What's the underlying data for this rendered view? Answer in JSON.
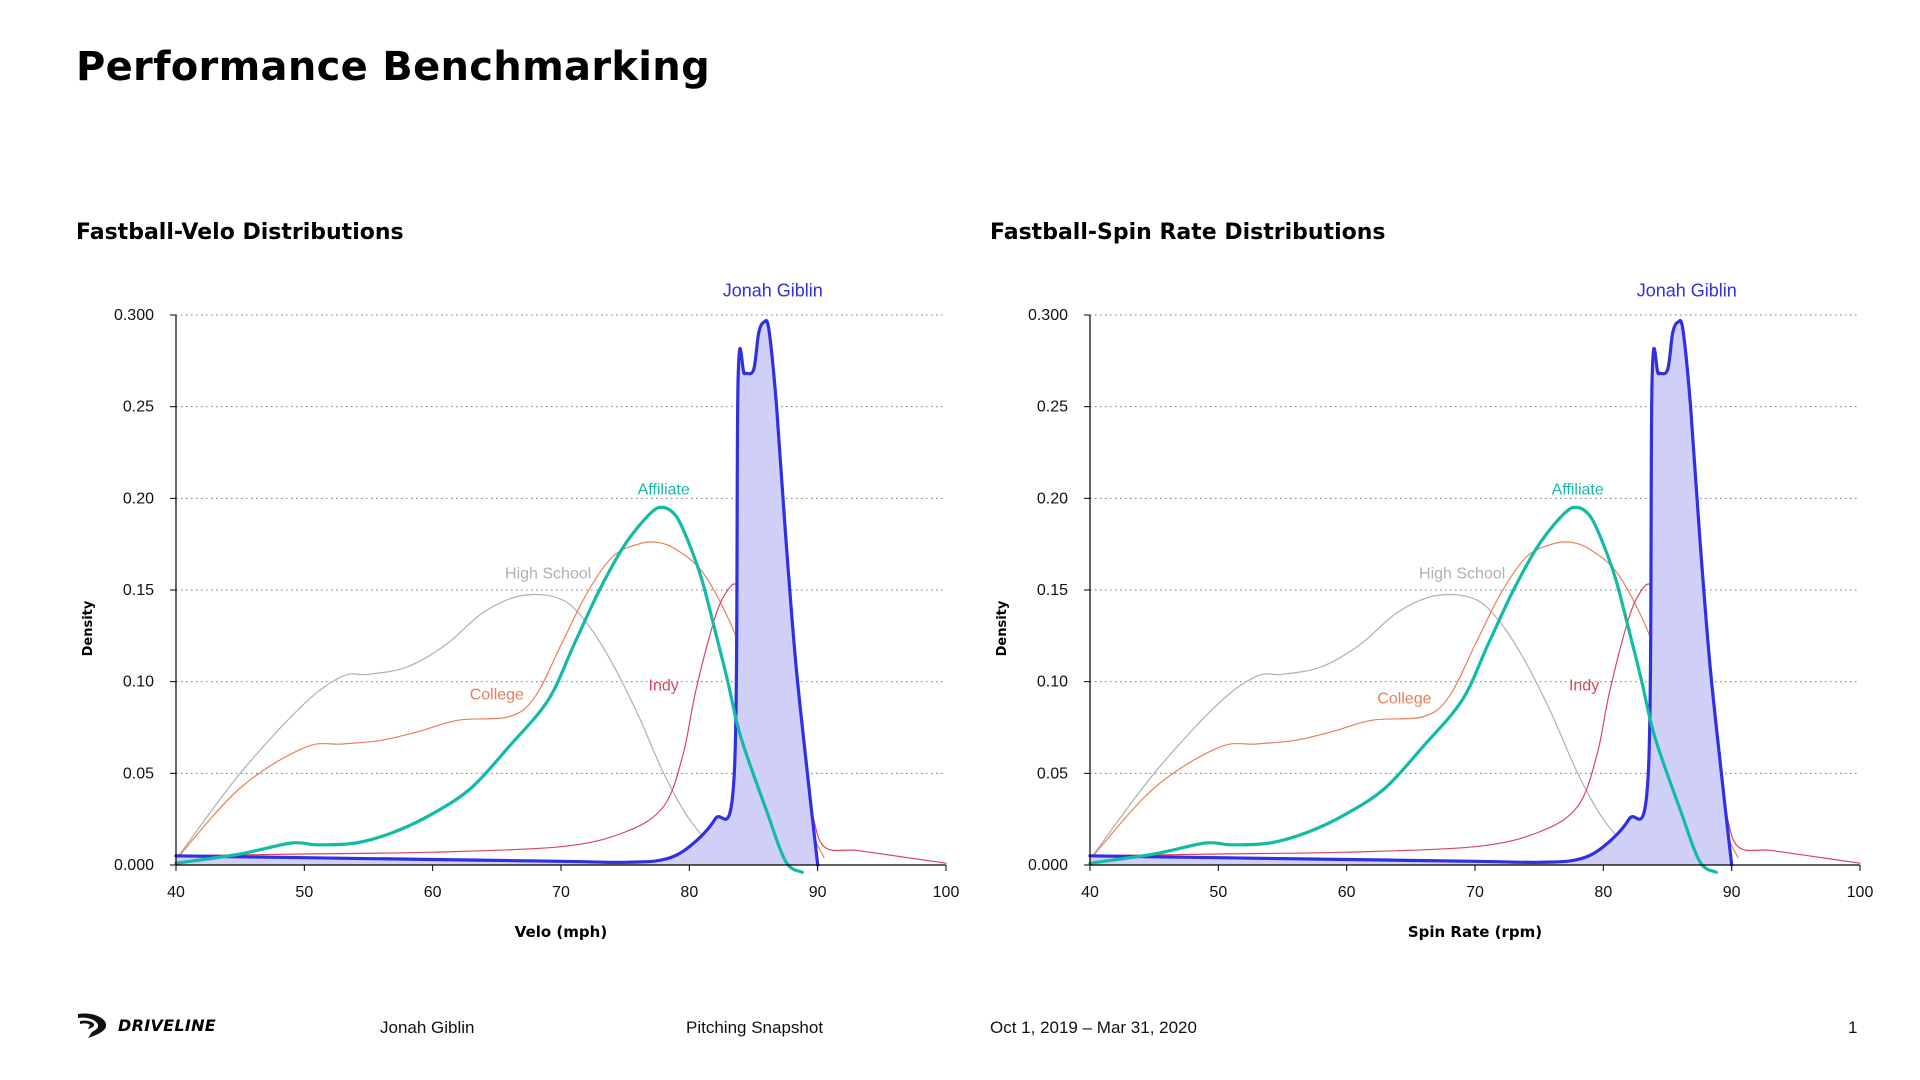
{
  "page": {
    "title": "Performance Benchmarking"
  },
  "footer": {
    "logo_text": "DRIVELINE",
    "player": "Jonah Giblin",
    "report": "Pitching Snapshot",
    "date_range": "Oct 1, 2019 – Mar 31, 2020",
    "page_number": "1"
  },
  "colors": {
    "high_school": "#b0b0b0",
    "college": "#e8805a",
    "affiliate": "#13bba6",
    "indy": "#d94560",
    "player": "#3030e0",
    "player_fill": "#cfcff8"
  },
  "chart_data": [
    {
      "type": "area",
      "title": "Fastball-Velo Distributions",
      "xlabel": "Velo (mph)",
      "ylabel": "Density",
      "xlim": [
        40,
        100
      ],
      "ylim": [
        0,
        0.3
      ],
      "xticks": [
        "40",
        "50",
        "60",
        "70",
        "80",
        "90",
        "100"
      ],
      "yticks": [
        "0.000",
        "0.05",
        "0.10",
        "0.15",
        "0.20",
        "0.25",
        "0.300"
      ],
      "grid": "horizontal-dotted",
      "series": [
        {
          "key": "high_school",
          "name": "High School",
          "label_x": 69,
          "label_y": 0.154,
          "x": [
            40,
            45,
            50,
            53,
            55,
            58,
            61,
            64,
            67,
            70,
            72,
            74,
            76,
            78,
            80,
            82,
            84,
            86,
            88,
            90
          ],
          "y": [
            0.003,
            0.05,
            0.088,
            0.103,
            0.104,
            0.108,
            0.12,
            0.138,
            0.147,
            0.145,
            0.132,
            0.11,
            0.082,
            0.05,
            0.025,
            0.01,
            0.005,
            0.004,
            0.004,
            0.004
          ]
        },
        {
          "key": "college",
          "name": "College",
          "label_x": 65,
          "label_y": 0.088,
          "x": [
            40,
            45,
            50,
            53,
            56,
            59,
            62,
            66,
            68,
            70,
            72,
            74,
            76,
            77.5,
            79,
            81,
            83,
            85,
            87,
            89,
            90.5
          ],
          "y": [
            0.003,
            0.042,
            0.064,
            0.066,
            0.068,
            0.073,
            0.079,
            0.081,
            0.092,
            0.12,
            0.148,
            0.168,
            0.175,
            0.176,
            0.172,
            0.16,
            0.135,
            0.1,
            0.06,
            0.025,
            0.004
          ]
        },
        {
          "key": "affiliate",
          "name": "Affiliate",
          "label_x": 78,
          "label_y": 0.2,
          "x": [
            40,
            45,
            49,
            51,
            54,
            57,
            60,
            63,
            66,
            69,
            71,
            73,
            75,
            77,
            78,
            79,
            80,
            81,
            82,
            83,
            84,
            86,
            87.5,
            88.8
          ],
          "y": [
            0.001,
            0.006,
            0.012,
            0.011,
            0.012,
            0.018,
            0.028,
            0.042,
            0.065,
            0.09,
            0.12,
            0.15,
            0.175,
            0.192,
            0.195,
            0.19,
            0.175,
            0.155,
            0.128,
            0.1,
            0.07,
            0.03,
            0.002,
            -0.004
          ]
        },
        {
          "key": "indy",
          "name": "Indy",
          "label_x": 78,
          "label_y": 0.093,
          "x": [
            40,
            50,
            60,
            70,
            75,
            78,
            79.5,
            80.5,
            82,
            83,
            83.7,
            84.5,
            86,
            88,
            89.5,
            90.5,
            93,
            96,
            100
          ],
          "y": [
            0.005,
            0.006,
            0.007,
            0.01,
            0.018,
            0.032,
            0.06,
            0.095,
            0.135,
            0.15,
            0.153,
            0.145,
            0.12,
            0.07,
            0.03,
            0.01,
            0.008,
            0.005,
            0.001
          ]
        },
        {
          "key": "player",
          "name": "Jonah Giblin",
          "label_x": 86.5,
          "label_y": 0.308,
          "filled": true,
          "x": [
            40,
            50,
            60,
            70,
            75,
            78,
            80,
            82,
            83.5,
            83.8,
            84.3,
            85,
            85.4,
            85.8,
            86.2,
            86.8,
            87.5,
            88.3,
            89.2,
            90
          ],
          "y": [
            0.005,
            0.004,
            0.003,
            0.002,
            0.0015,
            0.003,
            0.01,
            0.025,
            0.05,
            0.265,
            0.268,
            0.27,
            0.29,
            0.296,
            0.292,
            0.25,
            0.18,
            0.11,
            0.05,
            0.0
          ]
        }
      ]
    },
    {
      "type": "area",
      "title": "Fastball-Spin Rate Distributions",
      "xlabel": "Spin Rate (rpm)",
      "ylabel": "Density",
      "xlim": [
        40,
        100
      ],
      "ylim": [
        0,
        0.3
      ],
      "xticks": [
        "40",
        "50",
        "60",
        "70",
        "80",
        "90",
        "100"
      ],
      "yticks": [
        "0.000",
        "0.05",
        "0.10",
        "0.15",
        "0.20",
        "0.25",
        "0.300"
      ],
      "grid": "horizontal-dotted",
      "series": [
        {
          "key": "high_school",
          "name": "High School",
          "label_x": 69,
          "label_y": 0.154,
          "x": [
            40,
            45,
            50,
            53,
            55,
            58,
            61,
            64,
            67,
            70,
            72,
            74,
            76,
            78,
            80,
            82,
            84,
            86,
            88,
            90
          ],
          "y": [
            0.003,
            0.05,
            0.088,
            0.103,
            0.104,
            0.108,
            0.12,
            0.138,
            0.147,
            0.145,
            0.132,
            0.11,
            0.082,
            0.05,
            0.025,
            0.01,
            0.005,
            0.004,
            0.004,
            0.004
          ]
        },
        {
          "key": "college",
          "name": "College",
          "label_x": 64.5,
          "label_y": 0.086,
          "x": [
            40,
            45,
            50,
            53,
            56,
            59,
            62,
            66,
            68,
            70,
            72,
            74,
            76,
            77.5,
            79,
            81,
            83,
            85,
            87,
            89,
            90.5
          ],
          "y": [
            0.003,
            0.042,
            0.064,
            0.066,
            0.068,
            0.073,
            0.079,
            0.081,
            0.092,
            0.12,
            0.148,
            0.168,
            0.175,
            0.176,
            0.172,
            0.16,
            0.135,
            0.1,
            0.06,
            0.025,
            0.004
          ]
        },
        {
          "key": "affiliate",
          "name": "Affiliate",
          "label_x": 78,
          "label_y": 0.2,
          "x": [
            40,
            45,
            49,
            51,
            54,
            57,
            60,
            63,
            66,
            69,
            71,
            73,
            75,
            77,
            78,
            79,
            80,
            81,
            82,
            83,
            84,
            86,
            87.5,
            88.8
          ],
          "y": [
            0.001,
            0.006,
            0.012,
            0.011,
            0.012,
            0.018,
            0.028,
            0.042,
            0.065,
            0.09,
            0.12,
            0.15,
            0.175,
            0.192,
            0.195,
            0.19,
            0.175,
            0.155,
            0.128,
            0.1,
            0.07,
            0.03,
            0.002,
            -0.004
          ]
        },
        {
          "key": "indy",
          "name": "Indy",
          "label_x": 78.5,
          "label_y": 0.093,
          "x": [
            40,
            50,
            60,
            70,
            75,
            78,
            79.5,
            80.5,
            82,
            83,
            83.7,
            84.5,
            86,
            88,
            89.5,
            90.5,
            93,
            96,
            100
          ],
          "y": [
            0.005,
            0.006,
            0.007,
            0.01,
            0.018,
            0.032,
            0.06,
            0.095,
            0.135,
            0.15,
            0.153,
            0.145,
            0.12,
            0.07,
            0.03,
            0.01,
            0.008,
            0.005,
            0.001
          ]
        },
        {
          "key": "player",
          "name": "Jonah Giblin",
          "label_x": 86.5,
          "label_y": 0.308,
          "filled": true,
          "x": [
            40,
            50,
            60,
            70,
            75,
            78,
            80,
            82,
            83.5,
            83.8,
            84.3,
            85,
            85.4,
            85.8,
            86.2,
            86.8,
            87.5,
            88.3,
            89.2,
            90
          ],
          "y": [
            0.005,
            0.004,
            0.003,
            0.002,
            0.0015,
            0.003,
            0.01,
            0.025,
            0.05,
            0.265,
            0.268,
            0.27,
            0.29,
            0.296,
            0.292,
            0.25,
            0.18,
            0.11,
            0.05,
            0.0
          ]
        }
      ]
    }
  ]
}
